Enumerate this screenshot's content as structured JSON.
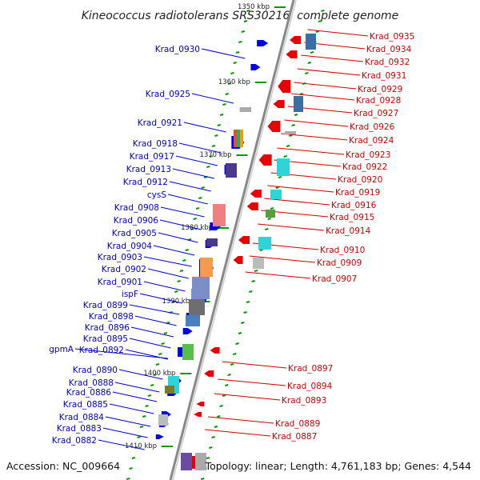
{
  "title": "Kineococcus radiotolerans SRS30216, complete genome",
  "accession": "Accession: NC_009664",
  "topology": "Topology: linear; Length: 4,761,183 bp; Genes: 4,544",
  "colors": {
    "forward": "#0000e6",
    "reverse": "#e60000",
    "tick": "#009900",
    "backbone": "#888888"
  },
  "kbp_marks": [
    "1350 kbp",
    "1360 kbp",
    "1370 kbp",
    "1380 kbp",
    "1390 kbp",
    "1400 kbp",
    "1410 kbp"
  ],
  "left_labels": [
    "Krad_0930",
    "Krad_0925",
    "Krad_0921",
    "Krad_0918",
    "Krad_0917",
    "Krad_0913",
    "Krad_0912",
    "cysS",
    "Krad_0908",
    "Krad_0906",
    "Krad_0905",
    "Krad_0904",
    "Krad_0903",
    "Krad_0902",
    "Krad_0901",
    "ispF",
    "Krad_0899",
    "Krad_0898",
    "Krad_0896",
    "Krad_0895",
    "gpmA",
    "Krad_0892",
    "Krad_0890",
    "Krad_0888",
    "Krad_0886",
    "Krad_0885",
    "Krad_0884",
    "Krad_0883",
    "Krad_0882"
  ],
  "right_labels": [
    "Krad_0935",
    "Krad_0934",
    "Krad_0932",
    "Krad_0931",
    "Krad_0929",
    "Krad_0928",
    "Krad_0927",
    "Krad_0926",
    "Krad_0924",
    "Krad_0923",
    "Krad_0922",
    "Krad_0920",
    "Krad_0919",
    "Krad_0916",
    "Krad_0915",
    "Krad_0914",
    "Krad_0910",
    "Krad_0909",
    "Krad_0907",
    "Krad_0897",
    "Krad_0894",
    "Krad_0893",
    "Krad_0889",
    "Krad_0887"
  ]
}
